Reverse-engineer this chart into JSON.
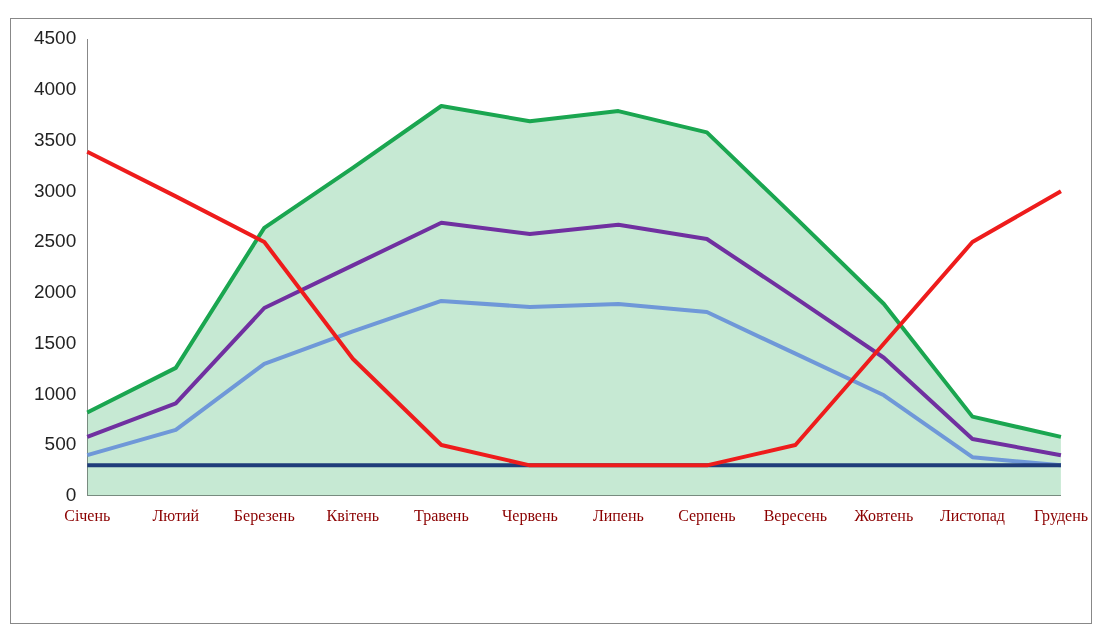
{
  "chart_data": {
    "type": "line",
    "categories": [
      "Січень",
      "Лютий",
      "Березень",
      "Квітень",
      "Травень",
      "Червень",
      "Липень",
      "Серпень",
      "Вересень",
      "Жовтень",
      "Листопад",
      "Грудень"
    ],
    "series": [
      {
        "type": "area",
        "color": "#1aa650",
        "values": [
          820,
          1260,
          2640,
          3230,
          3840,
          3690,
          3790,
          3580,
          2740,
          1890,
          780,
          580
        ]
      },
      {
        "color": "#7030a0",
        "values": [
          580,
          910,
          1850,
          2270,
          2690,
          2580,
          2670,
          2530,
          1950,
          1360,
          560,
          400
        ]
      },
      {
        "color": "#6f98d8",
        "values": [
          400,
          650,
          1300,
          1620,
          1920,
          1860,
          1890,
          1810,
          1400,
          990,
          380,
          300
        ]
      },
      {
        "color": "#1f3d7a",
        "values": [
          300,
          300,
          300,
          300,
          300,
          300,
          300,
          300,
          300,
          300,
          300,
          300
        ]
      },
      {
        "color": "#ee1c1c",
        "values": [
          3390,
          2950,
          2500,
          1350,
          500,
          300,
          300,
          300,
          500,
          1500,
          2500,
          3000
        ]
      }
    ],
    "ylim": [
      0,
      4500
    ],
    "yticks": [
      0,
      500,
      1000,
      1500,
      2000,
      2500,
      3000,
      3500,
      4000,
      4500
    ],
    "grid": false,
    "legend": false
  }
}
